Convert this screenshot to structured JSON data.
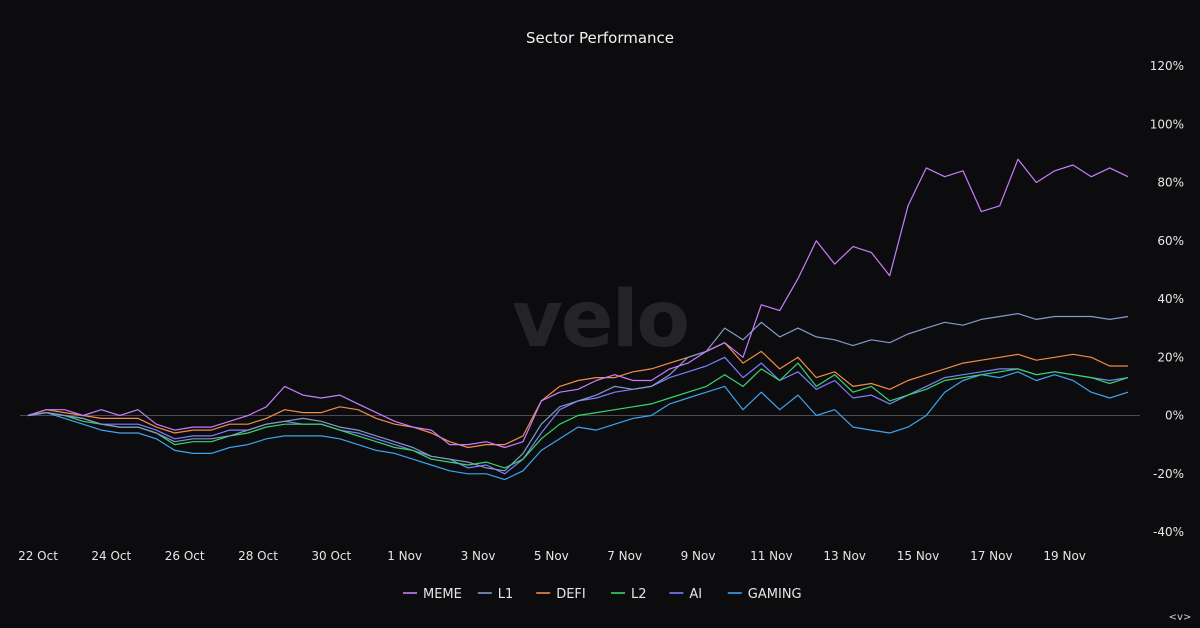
{
  "chart_data": {
    "type": "line",
    "title": "Sector Performance",
    "watermark": "velo",
    "corner_mark": "<v>",
    "xlabel": "",
    "ylabel": "",
    "ylim": [
      -40,
      120
    ],
    "y_ticks": [
      120,
      100,
      80,
      60,
      40,
      20,
      0,
      -20,
      -40
    ],
    "y_tick_labels": [
      "120%",
      "100%",
      "80%",
      "60%",
      "40%",
      "20%",
      "0%",
      "-20%",
      "-40%"
    ],
    "y_axis_side": "right",
    "zero_line": true,
    "grid": false,
    "legend_position": "bottom-center",
    "x_range": [
      0,
      30
    ],
    "x_ticks": [
      0,
      2,
      4,
      6,
      8,
      10,
      12,
      14,
      16,
      18,
      20,
      22,
      24,
      26,
      28
    ],
    "x_tick_labels": [
      "22 Oct",
      "24 Oct",
      "26 Oct",
      "28 Oct",
      "30 Oct",
      "1 Nov",
      "3 Nov",
      "5 Nov",
      "7 Nov",
      "9 Nov",
      "11 Nov",
      "13 Nov",
      "15 Nov",
      "17 Nov",
      "19 Nov"
    ],
    "x_unit_note": "x values are days since 22 Oct",
    "series": [
      {
        "name": "MEME",
        "color": "#c77dff",
        "x": [
          0,
          0.5,
          1,
          1.5,
          2,
          2.5,
          3,
          3.5,
          4,
          4.5,
          5,
          5.5,
          6,
          6.5,
          7,
          7.5,
          8,
          8.5,
          9,
          9.5,
          10,
          10.5,
          11,
          11.5,
          12,
          12.5,
          13,
          13.5,
          14,
          14.5,
          15,
          15.5,
          16,
          16.5,
          17,
          17.5,
          18,
          18.5,
          19,
          19.5,
          20,
          20.5,
          21,
          21.5,
          22,
          22.5,
          23,
          23.5,
          24,
          24.5,
          25,
          25.5,
          26,
          26.5,
          27,
          27.5,
          28,
          28.5,
          29,
          29.5,
          30
        ],
        "y": [
          0,
          2,
          2,
          0,
          2,
          0,
          2,
          -3,
          -5,
          -4,
          -4,
          -2,
          0,
          3,
          10,
          7,
          6,
          7,
          4,
          1,
          -2,
          -4,
          -5,
          -10,
          -10,
          -9,
          -11,
          -9,
          5,
          8,
          9,
          12,
          14,
          12,
          12,
          16,
          18,
          22,
          25,
          20,
          38,
          36,
          47,
          60,
          52,
          58,
          56,
          48,
          72,
          85,
          82,
          84,
          70,
          72,
          88,
          80,
          84,
          86,
          82,
          85,
          82
        ]
      },
      {
        "name": "L1",
        "color": "#8599c8",
        "x": [
          0,
          0.5,
          1,
          1.5,
          2,
          2.5,
          3,
          3.5,
          4,
          4.5,
          5,
          5.5,
          6,
          6.5,
          7,
          7.5,
          8,
          8.5,
          9,
          9.5,
          10,
          10.5,
          11,
          11.5,
          12,
          12.5,
          13,
          13.5,
          14,
          14.5,
          15,
          15.5,
          16,
          16.5,
          17,
          17.5,
          18,
          18.5,
          19,
          19.5,
          20,
          20.5,
          21,
          21.5,
          22,
          22.5,
          23,
          23.5,
          24,
          24.5,
          25,
          25.5,
          26,
          26.5,
          27,
          27.5,
          28,
          28.5,
          29,
          29.5,
          30
        ],
        "y": [
          0,
          1,
          0,
          -1,
          -3,
          -4,
          -4,
          -6,
          -9,
          -8,
          -8,
          -7,
          -5,
          -3,
          -2,
          -1,
          -2,
          -4,
          -5,
          -7,
          -9,
          -11,
          -14,
          -15,
          -16,
          -18,
          -19,
          -13,
          -3,
          3,
          5,
          7,
          10,
          9,
          10,
          14,
          20,
          22,
          30,
          26,
          32,
          27,
          30,
          27,
          26,
          24,
          26,
          25,
          28,
          30,
          32,
          31,
          33,
          34,
          35,
          33,
          34,
          34,
          34,
          33,
          34
        ]
      },
      {
        "name": "DEFI",
        "color": "#f28c4a",
        "x": [
          0,
          0.5,
          1,
          1.5,
          2,
          2.5,
          3,
          3.5,
          4,
          4.5,
          5,
          5.5,
          6,
          6.5,
          7,
          7.5,
          8,
          8.5,
          9,
          9.5,
          10,
          10.5,
          11,
          11.5,
          12,
          12.5,
          13,
          13.5,
          14,
          14.5,
          15,
          15.5,
          16,
          16.5,
          17,
          17.5,
          18,
          18.5,
          19,
          19.5,
          20,
          20.5,
          21,
          21.5,
          22,
          22.5,
          23,
          23.5,
          24,
          24.5,
          25,
          25.5,
          26,
          26.5,
          27,
          27.5,
          28,
          28.5,
          29,
          29.5,
          30
        ],
        "y": [
          0,
          2,
          1,
          0,
          -1,
          -1,
          -1,
          -4,
          -6,
          -5,
          -5,
          -3,
          -3,
          -1,
          2,
          1,
          1,
          3,
          2,
          -1,
          -3,
          -4,
          -6,
          -9,
          -11,
          -10,
          -10,
          -7,
          5,
          10,
          12,
          13,
          13,
          15,
          16,
          18,
          20,
          22,
          25,
          18,
          22,
          16,
          20,
          13,
          15,
          10,
          11,
          9,
          12,
          14,
          16,
          18,
          19,
          20,
          21,
          19,
          20,
          21,
          20,
          17,
          17
        ]
      },
      {
        "name": "L2",
        "color": "#37d66a",
        "x": [
          0,
          0.5,
          1,
          1.5,
          2,
          2.5,
          3,
          3.5,
          4,
          4.5,
          5,
          5.5,
          6,
          6.5,
          7,
          7.5,
          8,
          8.5,
          9,
          9.5,
          10,
          10.5,
          11,
          11.5,
          12,
          12.5,
          13,
          13.5,
          14,
          14.5,
          15,
          15.5,
          16,
          16.5,
          17,
          17.5,
          18,
          18.5,
          19,
          19.5,
          20,
          20.5,
          21,
          21.5,
          22,
          22.5,
          23,
          23.5,
          24,
          24.5,
          25,
          25.5,
          26,
          26.5,
          27,
          27.5,
          28,
          28.5,
          29,
          29.5,
          30
        ],
        "y": [
          0,
          1,
          0,
          -2,
          -3,
          -4,
          -4,
          -6,
          -10,
          -9,
          -9,
          -7,
          -6,
          -4,
          -3,
          -3,
          -3,
          -5,
          -7,
          -9,
          -11,
          -12,
          -15,
          -16,
          -17,
          -16,
          -18,
          -15,
          -8,
          -3,
          0,
          1,
          2,
          3,
          4,
          6,
          8,
          10,
          14,
          10,
          16,
          12,
          18,
          10,
          14,
          8,
          10,
          5,
          7,
          9,
          12,
          13,
          14,
          15,
          16,
          14,
          15,
          14,
          13,
          11,
          13
        ]
      },
      {
        "name": "AI",
        "color": "#7b7fff",
        "x": [
          0,
          0.5,
          1,
          1.5,
          2,
          2.5,
          3,
          3.5,
          4,
          4.5,
          5,
          5.5,
          6,
          6.5,
          7,
          7.5,
          8,
          8.5,
          9,
          9.5,
          10,
          10.5,
          11,
          11.5,
          12,
          12.5,
          13,
          13.5,
          14,
          14.5,
          15,
          15.5,
          16,
          16.5,
          17,
          17.5,
          18,
          18.5,
          19,
          19.5,
          20,
          20.5,
          21,
          21.5,
          22,
          22.5,
          23,
          23.5,
          24,
          24.5,
          25,
          25.5,
          26,
          26.5,
          27,
          27.5,
          28,
          28.5,
          29,
          29.5,
          30
        ],
        "y": [
          0,
          1,
          0,
          -1,
          -3,
          -3,
          -3,
          -5,
          -8,
          -7,
          -7,
          -5,
          -5,
          -3,
          -2,
          -3,
          -3,
          -5,
          -6,
          -8,
          -10,
          -12,
          -14,
          -15,
          -18,
          -17,
          -20,
          -15,
          -6,
          2,
          5,
          6,
          8,
          9,
          10,
          13,
          15,
          17,
          20,
          13,
          18,
          12,
          15,
          9,
          12,
          6,
          7,
          4,
          7,
          10,
          13,
          14,
          15,
          16,
          16,
          14,
          15,
          14,
          13,
          12,
          13
        ]
      },
      {
        "name": "GAMING",
        "color": "#3fa2f0",
        "x": [
          0,
          0.5,
          1,
          1.5,
          2,
          2.5,
          3,
          3.5,
          4,
          4.5,
          5,
          5.5,
          6,
          6.5,
          7,
          7.5,
          8,
          8.5,
          9,
          9.5,
          10,
          10.5,
          11,
          11.5,
          12,
          12.5,
          13,
          13.5,
          14,
          14.5,
          15,
          15.5,
          16,
          16.5,
          17,
          17.5,
          18,
          18.5,
          19,
          19.5,
          20,
          20.5,
          21,
          21.5,
          22,
          22.5,
          23,
          23.5,
          24,
          24.5,
          25,
          25.5,
          26,
          26.5,
          27,
          27.5,
          28,
          28.5,
          29,
          29.5,
          30
        ],
        "y": [
          0,
          1,
          -1,
          -3,
          -5,
          -6,
          -6,
          -8,
          -12,
          -13,
          -13,
          -11,
          -10,
          -8,
          -7,
          -7,
          -7,
          -8,
          -10,
          -12,
          -13,
          -15,
          -17,
          -19,
          -20,
          -20,
          -22,
          -19,
          -12,
          -8,
          -4,
          -5,
          -3,
          -1,
          0,
          4,
          6,
          8,
          10,
          2,
          8,
          2,
          7,
          0,
          2,
          -4,
          -5,
          -6,
          -4,
          0,
          8,
          12,
          14,
          13,
          15,
          12,
          14,
          12,
          8,
          6,
          8
        ]
      }
    ]
  }
}
